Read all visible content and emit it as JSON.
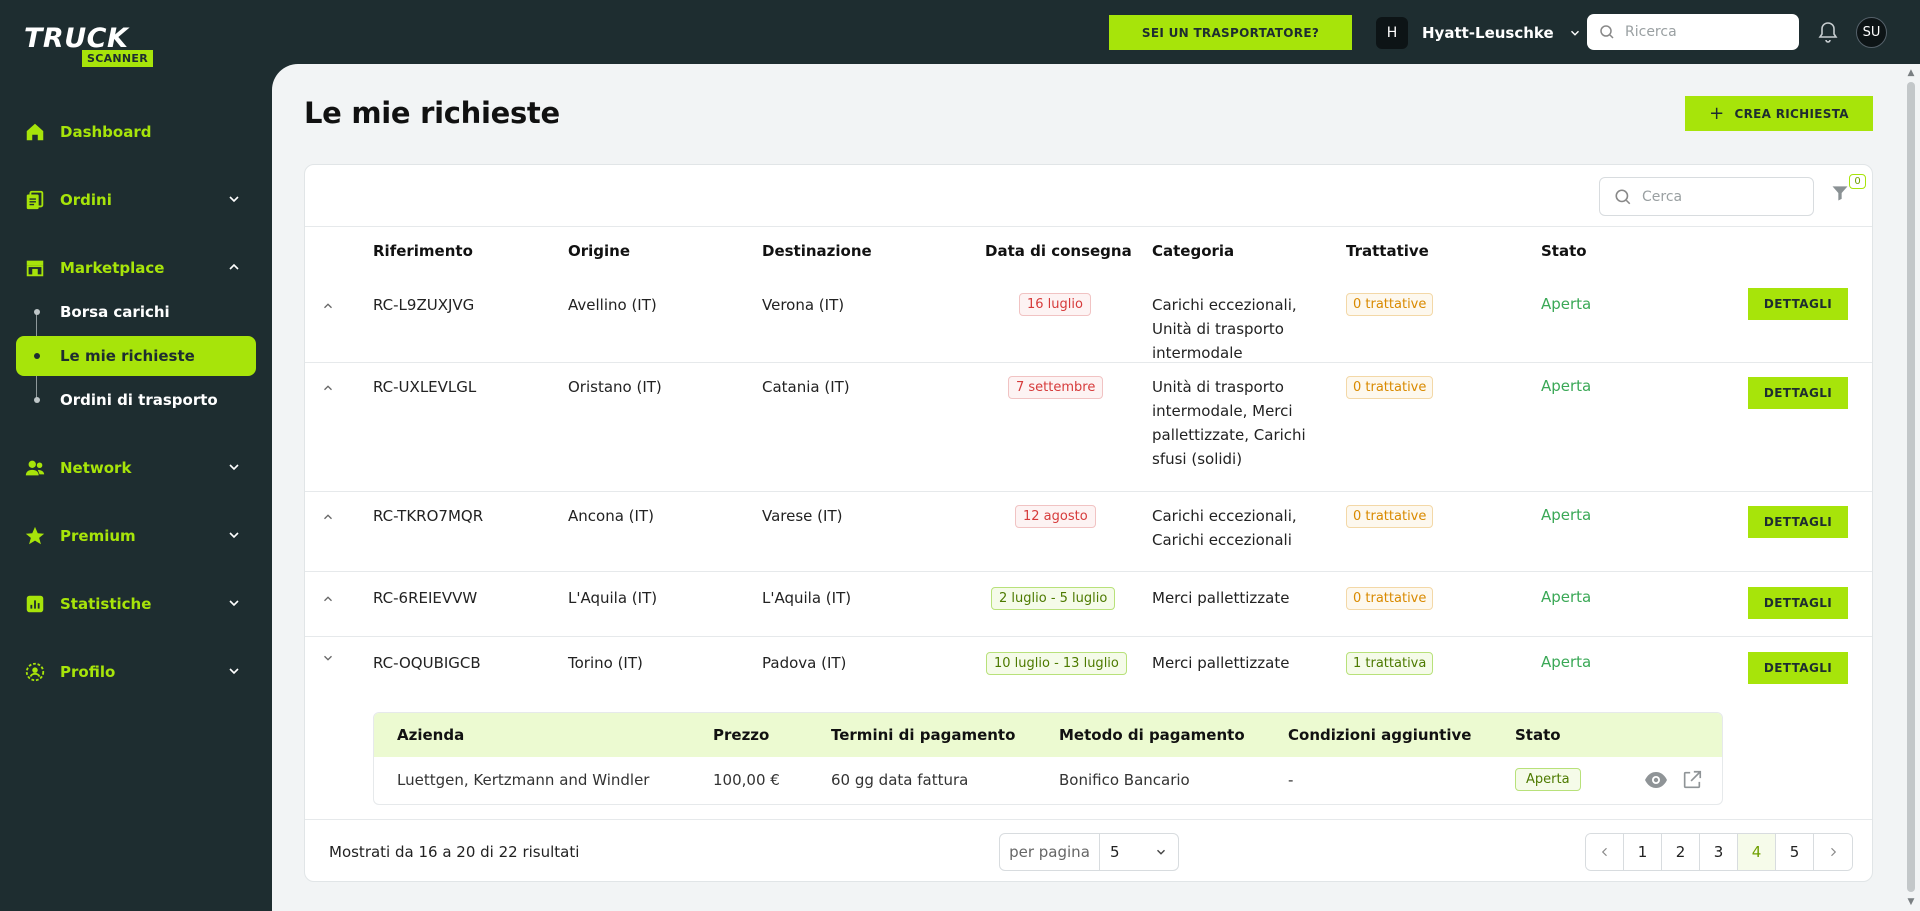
{
  "brand": {
    "logo_word1": "TRUCK",
    "logo_word2": "SCANNER",
    "accent": "#a7e40a",
    "dark": "#1e2d30"
  },
  "sidebar": {
    "items": [
      {
        "label": "Dashboard",
        "icon": "home-icon"
      },
      {
        "label": "Ordini",
        "icon": "documents-icon"
      },
      {
        "label": "Marketplace",
        "icon": "store-icon"
      },
      {
        "label": "Network",
        "icon": "users-icon"
      },
      {
        "label": "Premium",
        "icon": "star-icon"
      },
      {
        "label": "Statistiche",
        "icon": "chart-icon"
      },
      {
        "label": "Profilo",
        "icon": "user-gear-icon"
      }
    ],
    "marketplace_sub": [
      {
        "label": "Borsa carichi"
      },
      {
        "label": "Le mie richieste",
        "active": true
      },
      {
        "label": "Ordini di trasporto"
      }
    ]
  },
  "topbar": {
    "carrier_button": "SEI UN TRASPORTATORE?",
    "company_initial": "H",
    "company_name": "Hyatt-Leuschke",
    "search_placeholder": "Ricerca",
    "user_initials": "SU"
  },
  "page": {
    "title": "Le mie richieste",
    "create_button": "CREA RICHIESTA",
    "search_placeholder": "Cerca",
    "filter_count": "0"
  },
  "table": {
    "headers": [
      "Riferimento",
      "Origine",
      "Destinazione",
      "Data di consegna",
      "Categoria",
      "Trattative",
      "Stato"
    ],
    "details_label": "DETTAGLI",
    "rows": [
      {
        "ref": "RC-L9ZUXJVG",
        "origin": "Avellino (IT)",
        "dest": "Verona (IT)",
        "date": "16 luglio",
        "category": "Carichi eccezionali, Unità di trasporto intermodale",
        "negotiations": "0 trattative",
        "status": "Aperta"
      },
      {
        "ref": "RC-UXLEVLGL",
        "origin": "Oristano (IT)",
        "dest": "Catania (IT)",
        "date": "7 settembre",
        "category": "Unità di trasporto intermodale, Merci pallettizzate, Carichi sfusi (solidi)",
        "negotiations": "0 trattative",
        "status": "Aperta"
      },
      {
        "ref": "RC-TKRO7MQR",
        "origin": "Ancona (IT)",
        "dest": "Varese (IT)",
        "date": "12 agosto",
        "category": "Carichi eccezionali, Carichi eccezionali",
        "negotiations": "0 trattative",
        "status": "Aperta"
      },
      {
        "ref": "RC-6REIEVVW",
        "origin": "L'Aquila (IT)",
        "dest": "L'Aquila (IT)",
        "date": "2 luglio - 5 luglio",
        "category": "Merci pallettizzate",
        "negotiations": "0 trattative",
        "status": "Aperta"
      },
      {
        "ref": "RC-OQUBIGCB",
        "origin": "Torino (IT)",
        "dest": "Padova (IT)",
        "date": "10 luglio - 13 luglio",
        "category": "Merci pallettizzate",
        "negotiations": "1 trattativa",
        "status": "Aperta"
      }
    ],
    "expanded": {
      "headers": [
        "Azienda",
        "Prezzo",
        "Termini di pagamento",
        "Metodo di pagamento",
        "Condizioni aggiuntive",
        "Stato"
      ],
      "row": {
        "company": "Luettgen, Kertzmann and Windler",
        "price": "100,00 €",
        "terms": "60 gg data fattura",
        "method": "Bonifico Bancario",
        "conditions": "-",
        "status": "Aperta"
      }
    }
  },
  "footer": {
    "results_text": "Mostrati da 16 a 20 di 22 risultati",
    "per_page_label": "per pagina",
    "per_page_value": "5",
    "pages": [
      "1",
      "2",
      "3",
      "4",
      "5"
    ],
    "current_page": "4"
  }
}
